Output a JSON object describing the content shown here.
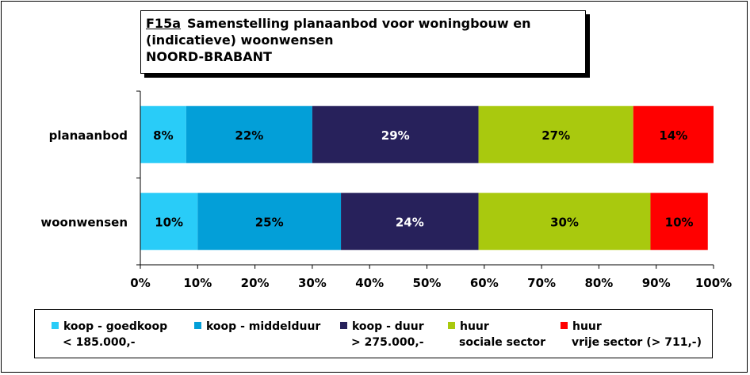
{
  "title": {
    "code": "F15a",
    "line1": "Samenstelling planaanbod voor woningbouw en",
    "line2": "(indicatieve) woonwensen",
    "line3": "NOORD-BRABANT"
  },
  "chart_data": {
    "type": "bar",
    "orientation": "horizontal",
    "stacked": true,
    "categories": [
      "planaanbod",
      "woonwensen"
    ],
    "series": [
      {
        "name": "koop - goedkoop < 185.000,-",
        "values": [
          8,
          10
        ],
        "labels": [
          "8%",
          "10%"
        ],
        "color": "#29CCF8"
      },
      {
        "name": "koop - middelduur",
        "values": [
          22,
          25
        ],
        "labels": [
          "22%",
          "25%"
        ],
        "color": "#039FD8"
      },
      {
        "name": "koop - duur > 275.000,-",
        "values": [
          29,
          24
        ],
        "labels": [
          "29%",
          "24%"
        ],
        "color": "#27215B"
      },
      {
        "name": "huur sociale sector",
        "values": [
          27,
          30
        ],
        "labels": [
          "27%",
          "30%"
        ],
        "color": "#A9C90E"
      },
      {
        "name": "huur vrije sector (> 711,-)",
        "values": [
          14,
          10
        ],
        "labels": [
          "14%",
          "10%"
        ],
        "color": "#FF0000"
      }
    ],
    "xlim": [
      0,
      100
    ],
    "xticks": [
      "0%",
      "10%",
      "20%",
      "30%",
      "40%",
      "50%",
      "60%",
      "70%",
      "80%",
      "90%",
      "100%"
    ],
    "grid": false,
    "legend_position": "bottom"
  },
  "legend": [
    {
      "line1": "koop - goedkoop",
      "line2": "< 185.000,-",
      "color": "#29CCF8",
      "icon": "square-swatch"
    },
    {
      "line1": "koop - middelduur",
      "line2": "",
      "color": "#039FD8",
      "icon": "square-swatch"
    },
    {
      "line1": "koop - duur",
      "line2": "> 275.000,-",
      "color": "#27215B",
      "icon": "square-swatch"
    },
    {
      "line1": "huur",
      "line2": "sociale sector",
      "color": "#A9C90E",
      "icon": "square-swatch"
    },
    {
      "line1": "huur",
      "line2": "vrije sector (> 711,-)",
      "color": "#FF0000",
      "icon": "square-swatch"
    }
  ]
}
